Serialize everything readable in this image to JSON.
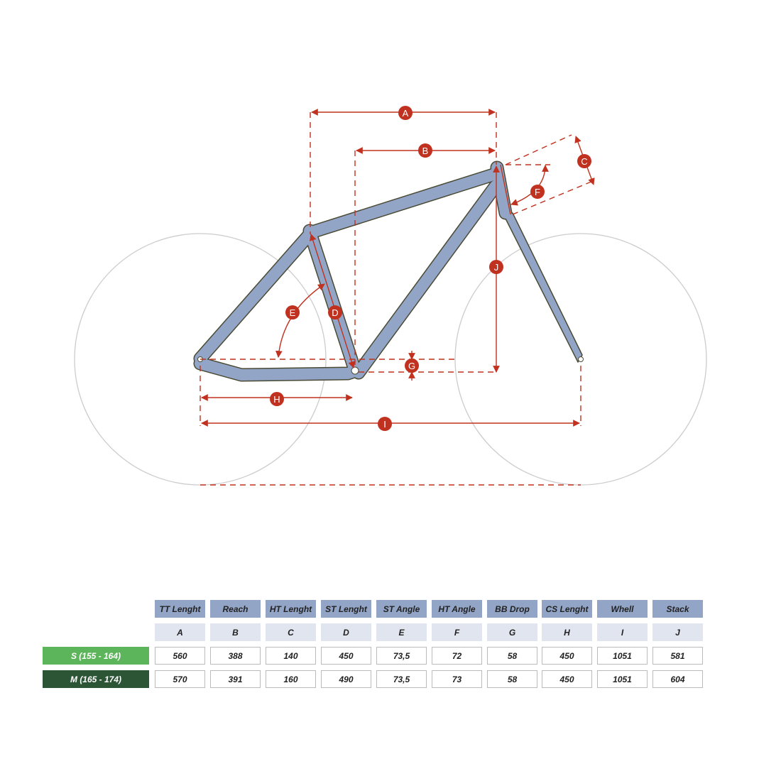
{
  "diagram": {
    "labels": [
      "A",
      "B",
      "C",
      "D",
      "E",
      "F",
      "G",
      "H",
      "I",
      "J"
    ],
    "colors": {
      "frame": "#93a5c6",
      "outline": "#4a4a35",
      "dimension": "#c0321f",
      "wheel": "#cccccc"
    }
  },
  "table": {
    "headers": [
      "TT Lenght",
      "Reach",
      "HT Lenght",
      "ST Lenght",
      "ST Angle",
      "HT Angle",
      "BB Drop",
      "CS Lenght",
      "Whell",
      "Stack"
    ],
    "letters": [
      "A",
      "B",
      "C",
      "D",
      "E",
      "F",
      "G",
      "H",
      "I",
      "J"
    ],
    "rows": [
      {
        "size": "S (155 - 164)",
        "color": "#5cb55a",
        "values": [
          "560",
          "388",
          "140",
          "450",
          "73,5",
          "72",
          "58",
          "450",
          "1051",
          "581"
        ]
      },
      {
        "size": "M (165 - 174)",
        "color": "#2b5535",
        "values": [
          "570",
          "391",
          "160",
          "490",
          "73,5",
          "73",
          "58",
          "450",
          "1051",
          "604"
        ]
      }
    ]
  }
}
